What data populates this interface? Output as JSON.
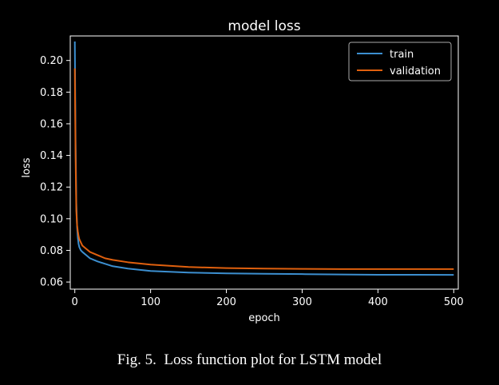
{
  "caption": "Fig. 5.  Loss function plot for LSTM model",
  "colors": {
    "background": "#000000",
    "train": "#3c8fd0",
    "validation": "#e0600e",
    "axis": "#ffffff"
  },
  "chart_data": {
    "type": "line",
    "title": "model loss",
    "xlabel": "epoch",
    "ylabel": "loss",
    "xlim": [
      -6,
      506
    ],
    "ylim": [
      0.0555,
      0.2155
    ],
    "xticks": [
      0,
      100,
      200,
      300,
      400,
      500
    ],
    "yticks": [
      0.06,
      0.08,
      0.1,
      0.12,
      0.14,
      0.16,
      0.18,
      0.2
    ],
    "yticklabels": [
      "0.06",
      "0.08",
      "0.10",
      "0.12",
      "0.14",
      "0.16",
      "0.18",
      "0.20"
    ],
    "grid": false,
    "legend_position": "top-right",
    "series": [
      {
        "name": "train",
        "color": "#3c8fd0",
        "x": [
          0,
          1,
          2,
          3,
          4,
          5,
          6,
          8,
          10,
          15,
          20,
          30,
          40,
          50,
          70,
          100,
          150,
          200,
          250,
          300,
          350,
          400,
          450,
          500
        ],
        "y": [
          0.212,
          0.15,
          0.11,
          0.095,
          0.088,
          0.084,
          0.082,
          0.08,
          0.079,
          0.077,
          0.075,
          0.073,
          0.0715,
          0.07,
          0.0685,
          0.067,
          0.066,
          0.0655,
          0.0652,
          0.065,
          0.0648,
          0.0646,
          0.0646,
          0.0645
        ]
      },
      {
        "name": "validation",
        "color": "#e0600e",
        "x": [
          0,
          1,
          2,
          3,
          4,
          5,
          6,
          8,
          10,
          15,
          20,
          30,
          40,
          50,
          70,
          100,
          150,
          200,
          250,
          300,
          350,
          400,
          450,
          500
        ],
        "y": [
          0.195,
          0.14,
          0.105,
          0.096,
          0.092,
          0.089,
          0.087,
          0.085,
          0.083,
          0.081,
          0.079,
          0.077,
          0.075,
          0.074,
          0.0725,
          0.071,
          0.0695,
          0.0688,
          0.0685,
          0.0683,
          0.0682,
          0.0682,
          0.0682,
          0.0682
        ]
      }
    ]
  }
}
